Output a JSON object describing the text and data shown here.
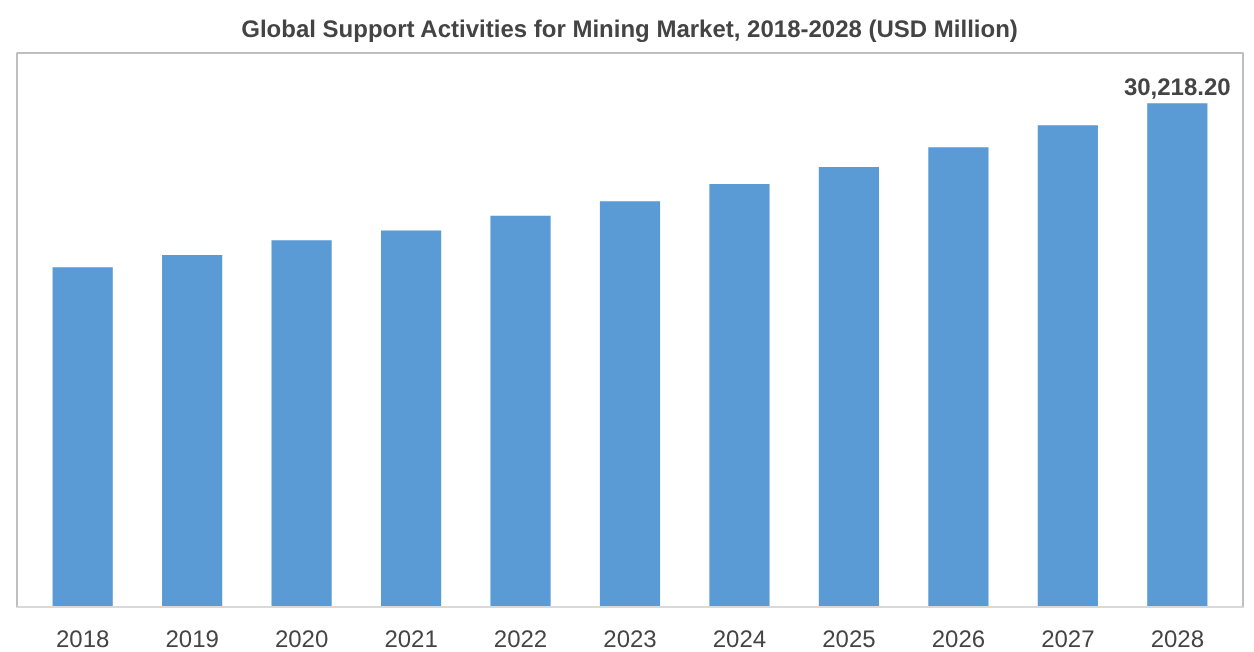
{
  "chart_data": {
    "type": "bar",
    "title": "Global Support Activities for Mining Market, 2018-2028 (USD Million)",
    "categories": [
      "2018",
      "2019",
      "2020",
      "2021",
      "2022",
      "2023",
      "2024",
      "2025",
      "2026",
      "2027",
      "2028"
    ],
    "values": [
      20390,
      21120,
      22000,
      22590,
      23470,
      24350,
      25380,
      26400,
      27580,
      28900,
      30218.2
    ],
    "value_labels": [
      null,
      null,
      null,
      null,
      null,
      null,
      null,
      null,
      null,
      null,
      "30,218.20"
    ],
    "color": "#5b9bd5"
  }
}
